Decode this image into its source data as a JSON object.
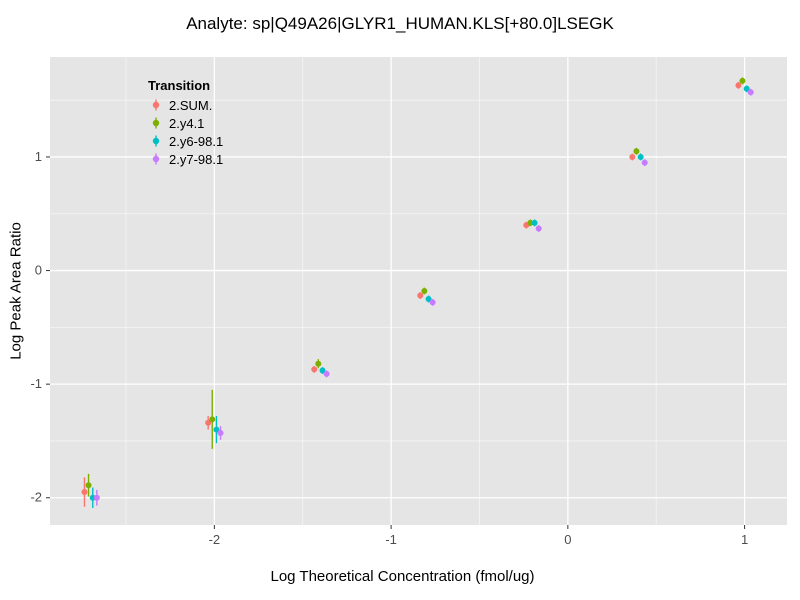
{
  "title": "Analyte: sp|Q49A26|GLYR1_HUMAN.KLS[+80.0]LSEGK",
  "chart_data": {
    "type": "scatter",
    "title": "Analyte: sp|Q49A26|GLYR1_HUMAN.KLS[+80.0]LSEGK",
    "xlabel": "Log Theoretical Concentration (fmol/ug)",
    "ylabel": "Log Peak Area Ratio",
    "legend_title": "Transition",
    "legend_position": "inside-top-left",
    "grid": true,
    "panel_bg": "#E5E5E5",
    "grid_major_color": "#FFFFFF",
    "grid_minor_color": "rgba(255,255,255,0.6)",
    "tick_color": "#333333",
    "tick_label_color": "#4D4D4D",
    "xlim": [
      -2.93,
      1.24
    ],
    "ylim": [
      -2.24,
      1.88
    ],
    "x_ticks": [
      -2,
      -1,
      0,
      1
    ],
    "y_ticks": [
      -2,
      -1,
      0,
      1
    ],
    "x_minor_ticks": [
      -2.5,
      -1.5,
      -0.5,
      0.5
    ],
    "y_minor_ticks": [
      -1.5,
      -0.5,
      0.5,
      1.5
    ],
    "x": [
      -2.7,
      -2.0,
      -1.4,
      -0.8,
      -0.2,
      0.4,
      1.0
    ],
    "series": [
      {
        "name": "2.SUM.",
        "color": "#F8766D",
        "dodge": -0.035,
        "y": [
          -1.95,
          -1.34,
          -0.87,
          -0.22,
          0.4,
          1.0,
          1.63
        ],
        "yerr": [
          0.13,
          0.06,
          0.03,
          0.03,
          0.03,
          0.03,
          0.03
        ]
      },
      {
        "name": "2.y4.1",
        "color": "#7CAE00",
        "dodge": -0.012,
        "y": [
          -1.89,
          -1.31,
          -0.82,
          -0.18,
          0.42,
          1.05,
          1.67
        ],
        "yerr": [
          0.1,
          0.26,
          0.04,
          0.03,
          0.03,
          0.03,
          0.03
        ]
      },
      {
        "name": "2.y6-98.1",
        "color": "#00BFC4",
        "dodge": 0.012,
        "y": [
          -2.0,
          -1.4,
          -0.88,
          -0.25,
          0.42,
          1.0,
          1.6
        ],
        "yerr": [
          0.09,
          0.12,
          0.03,
          0.03,
          0.03,
          0.03,
          0.03
        ]
      },
      {
        "name": "2.y7-98.1",
        "color": "#C77CFF",
        "dodge": 0.035,
        "y": [
          -2.0,
          -1.43,
          -0.91,
          -0.28,
          0.37,
          0.95,
          1.57
        ],
        "yerr": [
          0.07,
          0.06,
          0.03,
          0.03,
          0.03,
          0.03,
          0.03
        ]
      }
    ]
  }
}
